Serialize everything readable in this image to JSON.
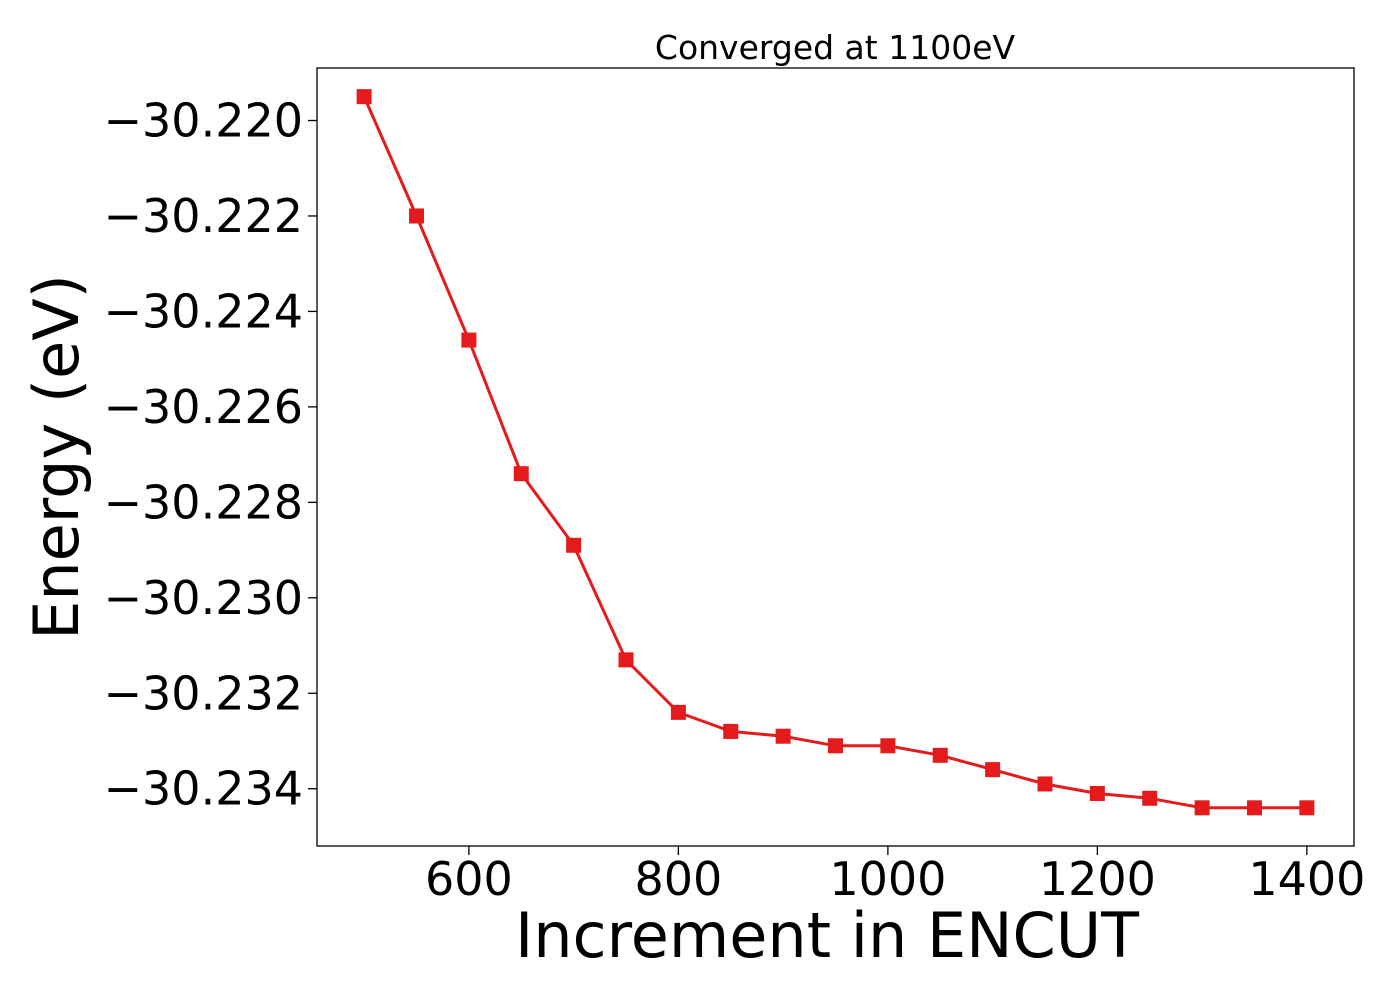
{
  "chart_data": {
    "type": "line",
    "title": "Converged at 1100eV",
    "xlabel": "Increment in ENCUT",
    "ylabel": "Energy (eV)",
    "xlim": [
      455,
      1445
    ],
    "ylim": [
      -30.2352,
      -30.2189
    ],
    "x_ticks": [
      600,
      800,
      1000,
      1200,
      1400
    ],
    "x_tick_labels": [
      "600",
      "800",
      "1000",
      "1200",
      "1400"
    ],
    "y_ticks": [
      -30.22,
      -30.222,
      -30.224,
      -30.226,
      -30.228,
      -30.23,
      -30.232,
      -30.234
    ],
    "y_tick_labels": [
      "−30.220",
      "−30.222",
      "−30.224",
      "−30.226",
      "−30.228",
      "−30.230",
      "−30.232",
      "−30.234"
    ],
    "grid": false,
    "series": [
      {
        "color": "#e41a1c",
        "marker": "square",
        "x": [
          500,
          550,
          600,
          650,
          700,
          750,
          800,
          850,
          900,
          950,
          1000,
          1050,
          1100,
          1150,
          1200,
          1250,
          1300,
          1350,
          1400
        ],
        "y": [
          -30.2195,
          -30.222,
          -30.2246,
          -30.2274,
          -30.2289,
          -30.2313,
          -30.2324,
          -30.2328,
          -30.2329,
          -30.2331,
          -30.2331,
          -30.2333,
          -30.2336,
          -30.2339,
          -30.2341,
          -30.2342,
          -30.2344,
          -30.2344,
          -30.2344
        ]
      }
    ]
  }
}
